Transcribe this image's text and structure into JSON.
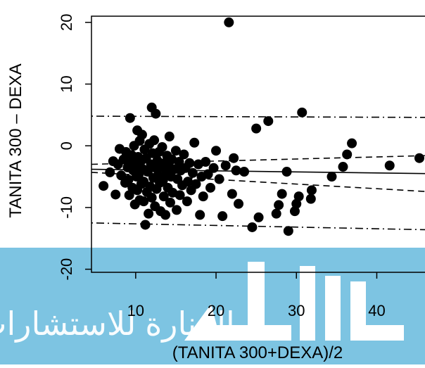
{
  "chart_data": {
    "type": "scatter",
    "title": "",
    "xlabel": "(TANITA 300+DEXA)/2",
    "ylabel": "TANITA 300 – DEXA",
    "xlim": [
      4.5,
      46
    ],
    "ylim": [
      -20.5,
      21
    ],
    "xticks": [
      10,
      20,
      30,
      40
    ],
    "yticks": [
      -20,
      -10,
      0,
      10,
      20
    ],
    "grid": false,
    "legend": "none",
    "points": [
      [
        6.0,
        -6.5
      ],
      [
        6.8,
        -4.3
      ],
      [
        7.2,
        -2.5
      ],
      [
        7.5,
        -7.9
      ],
      [
        7.8,
        -3.0
      ],
      [
        8.0,
        -0.5
      ],
      [
        8.2,
        -4.8
      ],
      [
        8.5,
        -2.2
      ],
      [
        8.7,
        -6.0
      ],
      [
        8.8,
        -1.0
      ],
      [
        9.0,
        -3.5
      ],
      [
        9.1,
        -5.5
      ],
      [
        9.2,
        -8.0
      ],
      [
        9.3,
        4.5
      ],
      [
        9.4,
        -2.8
      ],
      [
        9.5,
        -1.5
      ],
      [
        9.6,
        -6.8
      ],
      [
        9.7,
        -4.0
      ],
      [
        9.8,
        0.0
      ],
      [
        9.9,
        -9.5
      ],
      [
        10.0,
        -3.2
      ],
      [
        10.1,
        -5.0
      ],
      [
        10.2,
        2.5
      ],
      [
        10.2,
        -7.2
      ],
      [
        10.3,
        -1.8
      ],
      [
        10.4,
        -4.6
      ],
      [
        10.5,
        0.8
      ],
      [
        10.5,
        -8.8
      ],
      [
        10.6,
        -2.6
      ],
      [
        10.7,
        -6.2
      ],
      [
        10.8,
        1.8
      ],
      [
        10.9,
        -3.8
      ],
      [
        11.0,
        -5.8
      ],
      [
        11.0,
        -9.0
      ],
      [
        11.1,
        -0.6
      ],
      [
        11.2,
        -12.8
      ],
      [
        11.3,
        -2.0
      ],
      [
        11.4,
        -7.5
      ],
      [
        11.5,
        -4.2
      ],
      [
        11.6,
        -11.0
      ],
      [
        11.7,
        0.3
      ],
      [
        11.8,
        -6.6
      ],
      [
        11.9,
        -3.0
      ],
      [
        12.0,
        6.2
      ],
      [
        12.0,
        -8.4
      ],
      [
        12.1,
        -1.2
      ],
      [
        12.2,
        -5.2
      ],
      [
        12.3,
        0.9
      ],
      [
        12.4,
        -9.8
      ],
      [
        12.5,
        5.2
      ],
      [
        12.5,
        -3.6
      ],
      [
        12.6,
        -7.0
      ],
      [
        12.7,
        -2.4
      ],
      [
        12.8,
        -4.8
      ],
      [
        12.9,
        -1.0
      ],
      [
        13.0,
        -6.0
      ],
      [
        13.1,
        -10.6
      ],
      [
        13.2,
        -3.4
      ],
      [
        13.3,
        -0.2
      ],
      [
        13.4,
        -5.6
      ],
      [
        13.5,
        -8.2
      ],
      [
        13.6,
        -2.8
      ],
      [
        13.7,
        -11.2
      ],
      [
        13.8,
        -4.4
      ],
      [
        13.9,
        -1.6
      ],
      [
        14.0,
        -6.8
      ],
      [
        14.1,
        -3.2
      ],
      [
        14.2,
        1.5
      ],
      [
        14.3,
        -9.2
      ],
      [
        14.4,
        -5.0
      ],
      [
        14.5,
        -2.2
      ],
      [
        14.6,
        -7.6
      ],
      [
        14.8,
        -3.8
      ],
      [
        15.0,
        -0.8
      ],
      [
        15.1,
        -10.4
      ],
      [
        15.2,
        -5.4
      ],
      [
        15.4,
        -2.6
      ],
      [
        15.5,
        -8.0
      ],
      [
        15.6,
        -4.0
      ],
      [
        15.8,
        -6.4
      ],
      [
        16.0,
        -1.4
      ],
      [
        16.2,
        -3.6
      ],
      [
        16.4,
        -9.0
      ],
      [
        16.5,
        -5.8
      ],
      [
        16.7,
        -2.8
      ],
      [
        16.9,
        -7.2
      ],
      [
        17.1,
        -4.4
      ],
      [
        17.3,
        0.5
      ],
      [
        17.5,
        -6.2
      ],
      [
        17.8,
        -3.0
      ],
      [
        18.0,
        -11.2
      ],
      [
        18.2,
        -5.0
      ],
      [
        18.4,
        -8.2
      ],
      [
        18.7,
        -2.6
      ],
      [
        19.0,
        -4.6
      ],
      [
        19.3,
        -6.8
      ],
      [
        19.7,
        -3.6
      ],
      [
        20.0,
        -0.8
      ],
      [
        20.4,
        -5.4
      ],
      [
        20.8,
        -11.4
      ],
      [
        21.2,
        -3.2
      ],
      [
        21.6,
        20.0
      ],
      [
        22.0,
        -7.8
      ],
      [
        22.2,
        -2.0
      ],
      [
        22.5,
        -4.0
      ],
      [
        22.8,
        -9.4
      ],
      [
        23.5,
        -4.2
      ],
      [
        24.5,
        -13.2
      ],
      [
        25.0,
        2.8
      ],
      [
        25.3,
        -11.6
      ],
      [
        26.5,
        4.0
      ],
      [
        27.5,
        -11.0
      ],
      [
        27.8,
        -9.6
      ],
      [
        28.2,
        -7.8
      ],
      [
        28.8,
        -4.2
      ],
      [
        29.0,
        -13.8
      ],
      [
        29.8,
        -10.6
      ],
      [
        30.0,
        -9.4
      ],
      [
        30.3,
        -8.2
      ],
      [
        30.7,
        5.4
      ],
      [
        31.8,
        -8.6
      ],
      [
        31.9,
        -7.2
      ],
      [
        34.4,
        -5.0
      ],
      [
        35.8,
        -3.4
      ],
      [
        36.3,
        -1.4
      ],
      [
        36.9,
        0.4
      ],
      [
        41.6,
        -3.2
      ],
      [
        45.3,
        -2.0
      ]
    ],
    "lines": {
      "mean_bias": {
        "style": "solid",
        "y_at_xmin": -3.8,
        "y_at_xmax": -4.5
      },
      "regression_ci_upper": {
        "style": "dashed",
        "y_at_xmin": -3.0,
        "y_at_xmax": -1.6
      },
      "regression_ci_lower": {
        "style": "dashed",
        "y_at_xmin": -4.3,
        "y_at_xmax": -7.4
      },
      "limit_of_agreement_upper": {
        "style": "dot-dash",
        "y_at_xmin": 4.8,
        "y_at_xmax": 4.6
      },
      "limit_of_agreement_lower": {
        "style": "dot-dash",
        "y_at_xmin": -12.5,
        "y_at_xmax": -13.6
      }
    }
  },
  "overlay": {
    "watermark_text": "المنارة للاستشارات",
    "band_color": "#7dc4e2",
    "logo_color": "#ffffff"
  }
}
